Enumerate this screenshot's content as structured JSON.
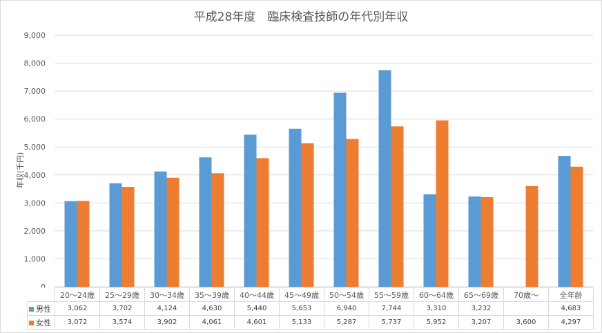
{
  "chart_data": {
    "type": "bar",
    "title": "平成28年度　臨床検査技師の年代別年収",
    "xlabel": "",
    "ylabel": "年収(千円)",
    "ylim": [
      0,
      9000
    ],
    "yticks": [
      "0",
      "1,000",
      "2,000",
      "3,000",
      "4,000",
      "5,000",
      "6,000",
      "7,000",
      "8,000",
      "9,000"
    ],
    "grid": true,
    "legend": "data-table",
    "categories": [
      "20～24歳",
      "25～29歳",
      "30～34歳",
      "35～39歳",
      "40～44歳",
      "45～49歳",
      "50～54歳",
      "55～59歳",
      "60～64歳",
      "65～69歳",
      "70歳～",
      "全年齢"
    ],
    "series": [
      {
        "name": "男性",
        "color": "#5b9bd5",
        "values": [
          3062,
          3702,
          4124,
          4630,
          5440,
          5653,
          6940,
          7744,
          3310,
          3232,
          null,
          4683
        ],
        "labels": [
          "3,062",
          "3,702",
          "4,124",
          "4,630",
          "5,440",
          "5,653",
          "6,940",
          "7,744",
          "3,310",
          "3,232",
          "",
          "4,683"
        ]
      },
      {
        "name": "女性",
        "color": "#ed7d31",
        "values": [
          3072,
          3574,
          3902,
          4061,
          4601,
          5133,
          5287,
          5737,
          5952,
          3207,
          3600,
          4297
        ],
        "labels": [
          "3,072",
          "3,574",
          "3,902",
          "4,061",
          "4,601",
          "5,133",
          "5,287",
          "5,737",
          "5,952",
          "3,207",
          "3,600",
          "4,297"
        ]
      }
    ]
  }
}
